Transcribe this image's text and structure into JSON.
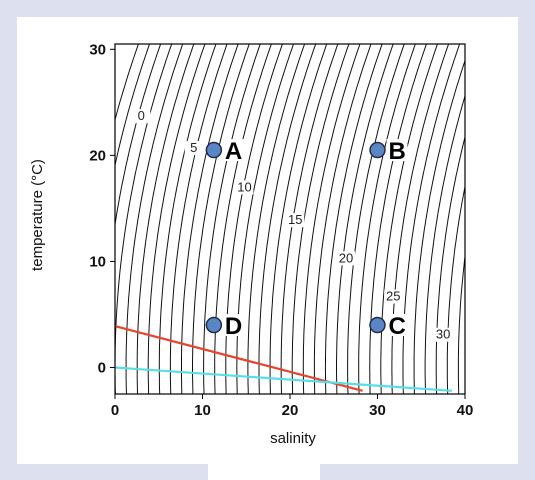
{
  "chart_data": {
    "type": "line",
    "xlabel": "salinity",
    "ylabel": "temperature (°C)",
    "xlim": [
      0,
      40
    ],
    "ylim": [
      -2.5,
      30.5
    ],
    "x_ticks": [
      "0",
      "10",
      "20",
      "30",
      "40"
    ],
    "y_ticks": [
      "0",
      "10",
      "20",
      "30"
    ],
    "grid": false,
    "contours": {
      "description": "density (sigma-t) isolines",
      "levels": [
        -3,
        -2,
        -1,
        0,
        1,
        2,
        3,
        4,
        5,
        6,
        7,
        8,
        9,
        10,
        11,
        12,
        13,
        14,
        15,
        16,
        17,
        18,
        19,
        20,
        21,
        22,
        23,
        24,
        25,
        26,
        27,
        28,
        29,
        30,
        31
      ],
      "labels": [
        {
          "text": "0",
          "x": 3.0,
          "y": 23.5
        },
        {
          "text": "5",
          "x": 9.0,
          "y": 20.5
        },
        {
          "text": "10",
          "x": 14.8,
          "y": 16.8
        },
        {
          "text": "15",
          "x": 20.6,
          "y": 13.7
        },
        {
          "text": "20",
          "x": 26.4,
          "y": 10.1
        },
        {
          "text": "25",
          "x": 31.8,
          "y": 6.5
        },
        {
          "text": "30",
          "x": 37.5,
          "y": 2.9
        }
      ]
    },
    "series": [
      {
        "x": [
          0,
          28.3
        ],
        "y": [
          3.9,
          -2.2
        ],
        "color": "#e8432e"
      },
      {
        "x": [
          0,
          38.5
        ],
        "y": [
          0.0,
          -2.2
        ],
        "color": "#56dfe6"
      }
    ],
    "points": [
      {
        "label": "A",
        "salinity": 11.3,
        "temperature": 20.5
      },
      {
        "label": "B",
        "salinity": 30.0,
        "temperature": 20.5
      },
      {
        "label": "C",
        "salinity": 30.0,
        "temperature": 4.0
      },
      {
        "label": "D",
        "salinity": 11.3,
        "temperature": 4.0
      }
    ],
    "point_color": "#5b86c6"
  }
}
